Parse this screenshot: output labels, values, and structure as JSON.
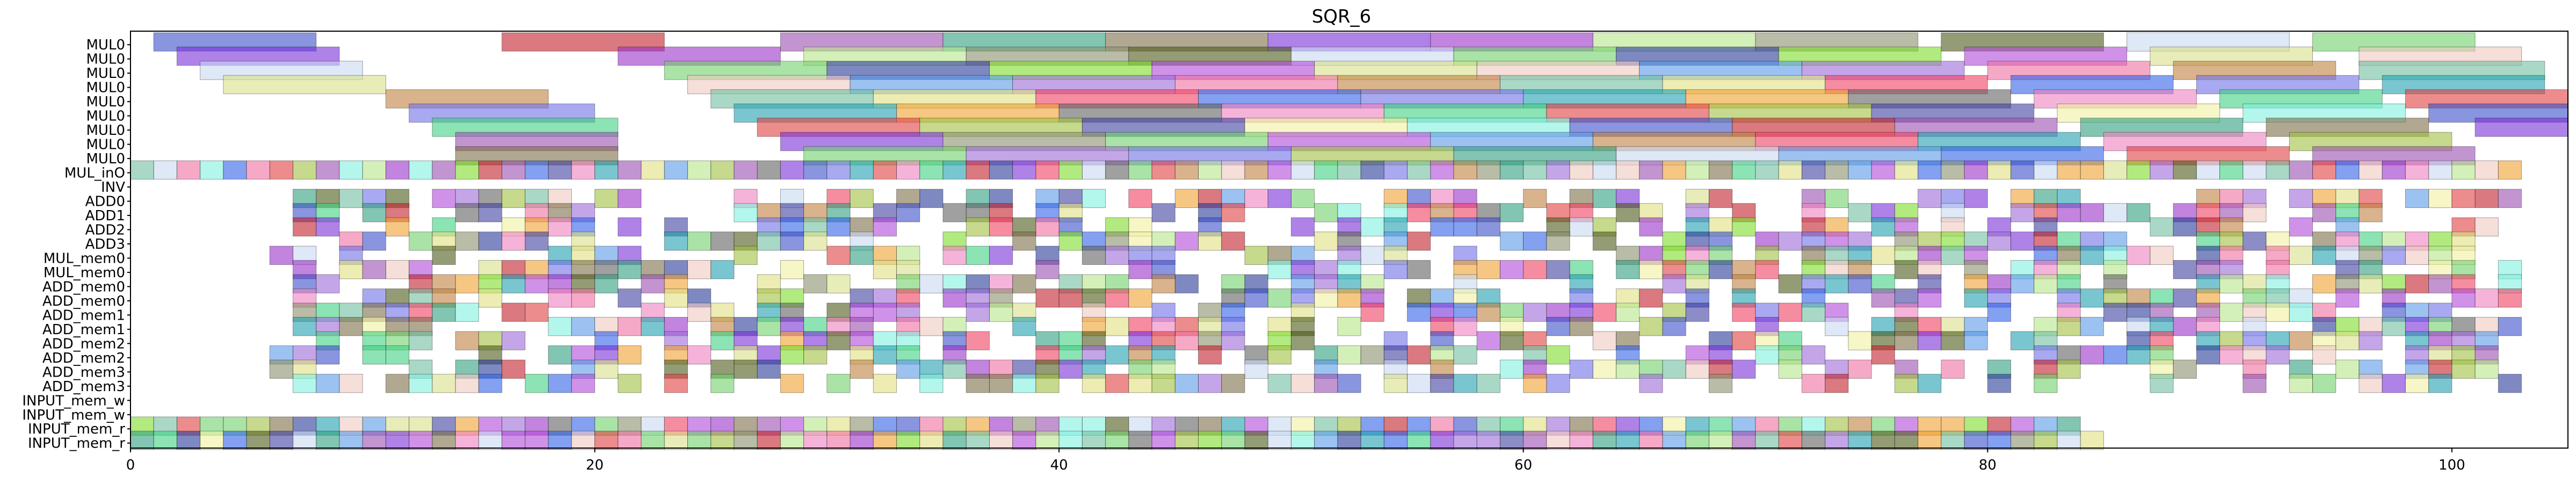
{
  "chart_data": {
    "type": "gantt",
    "title": "SQR_6",
    "xlabel": "",
    "ylabel": "",
    "xlim": [
      0,
      105
    ],
    "x_ticks": [
      0,
      20,
      40,
      60,
      80,
      100
    ],
    "grid": false,
    "legend": "none",
    "rows": [
      "MUL0",
      "MUL0",
      "MUL0",
      "MUL0",
      "MUL0",
      "MUL0",
      "MUL0",
      "MUL0",
      "MUL0",
      "MUL_inO",
      "INV",
      "ADD0",
      "ADD1",
      "ADD2",
      "ADD3",
      "MUL_mem0",
      "MUL_mem0",
      "ADD_mem0",
      "ADD_mem0",
      "ADD_mem1",
      "ADD_mem1",
      "ADD_mem2",
      "ADD_mem2",
      "ADD_mem3",
      "ADD_mem3",
      "INPUT_mem_w",
      "INPUT_mem_w",
      "INPUT_mem_r",
      "INPUT_mem_r"
    ],
    "palette": [
      "#3a4fc8",
      "#c21f2a",
      "#9b4fb0",
      "#2f9e7e",
      "#7d6e4a",
      "#7a2fd8",
      "#9a32c8",
      "#b8e68a",
      "#8a8f6a",
      "#4d5a1a",
      "#c8d8f0",
      "#6fd06a",
      "#283a9a",
      "#7ddc2a",
      "#b04ad8",
      "#d8e088",
      "#f0c8c0",
      "#5a9ae8",
      "#9c6ad8",
      "#f070a0",
      "#c08040",
      "#70c0a0",
      "#e0e080",
      "#f04060",
      "#3060e8",
      "#7070e8",
      "#20a0b0",
      "#f0a030",
      "#606060",
      "#f080c0",
      "#40d080",
      "#e04040",
      "#a0c040",
      "#4040a0",
      "#f0f0a0",
      "#80f0e0"
    ],
    "long_bars": [
      [
        [
          1,
          8
        ],
        [
          16,
          23
        ],
        [
          28,
          35
        ],
        [
          35,
          42
        ],
        [
          42,
          49
        ],
        [
          49,
          56
        ],
        [
          56,
          63
        ],
        [
          63,
          70
        ],
        [
          70,
          77
        ],
        [
          78,
          85
        ],
        [
          86,
          93
        ],
        [
          94,
          101
        ]
      ],
      [
        [
          2,
          9
        ],
        [
          21,
          28
        ],
        [
          29,
          36
        ],
        [
          36,
          43
        ],
        [
          43,
          50
        ],
        [
          50,
          57
        ],
        [
          57,
          64
        ],
        [
          64,
          71
        ],
        [
          71,
          78
        ],
        [
          79,
          86
        ],
        [
          87,
          94
        ],
        [
          96,
          103
        ]
      ],
      [
        [
          3,
          10
        ],
        [
          23,
          30
        ],
        [
          30,
          37
        ],
        [
          37,
          44
        ],
        [
          44,
          51
        ],
        [
          51,
          58
        ],
        [
          58,
          65
        ],
        [
          65,
          72
        ],
        [
          72,
          79
        ],
        [
          80,
          87
        ],
        [
          88,
          95
        ],
        [
          96,
          104
        ]
      ],
      [
        [
          4,
          11
        ],
        [
          24,
          31
        ],
        [
          31,
          38
        ],
        [
          38,
          45
        ],
        [
          45,
          52
        ],
        [
          52,
          59
        ],
        [
          59,
          66
        ],
        [
          66,
          73
        ],
        [
          73,
          80
        ],
        [
          81,
          88
        ],
        [
          89,
          96
        ],
        [
          97,
          104
        ]
      ],
      [
        [
          11,
          18
        ],
        [
          25,
          32
        ],
        [
          32,
          39
        ],
        [
          39,
          46
        ],
        [
          46,
          53
        ],
        [
          53,
          60
        ],
        [
          60,
          67
        ],
        [
          67,
          74
        ],
        [
          74,
          81
        ],
        [
          82,
          89
        ],
        [
          90,
          97
        ],
        [
          98,
          105
        ]
      ],
      [
        [
          12,
          20
        ],
        [
          26,
          33
        ],
        [
          33,
          40
        ],
        [
          40,
          47
        ],
        [
          47,
          54
        ],
        [
          54,
          61
        ],
        [
          61,
          68
        ],
        [
          68,
          75
        ],
        [
          75,
          82
        ],
        [
          83,
          90
        ],
        [
          91,
          98
        ],
        [
          99,
          106
        ]
      ],
      [
        [
          13,
          21
        ],
        [
          27,
          34
        ],
        [
          34,
          41
        ],
        [
          41,
          48
        ],
        [
          48,
          55
        ],
        [
          55,
          62
        ],
        [
          62,
          69
        ],
        [
          69,
          76
        ],
        [
          76,
          83
        ],
        [
          84,
          91
        ],
        [
          92,
          99
        ],
        [
          101,
          108
        ]
      ]
    ],
    "dense_rows_start": 9,
    "dense_rows_end": 28,
    "dense_x_range": [
      0,
      103
    ]
  }
}
